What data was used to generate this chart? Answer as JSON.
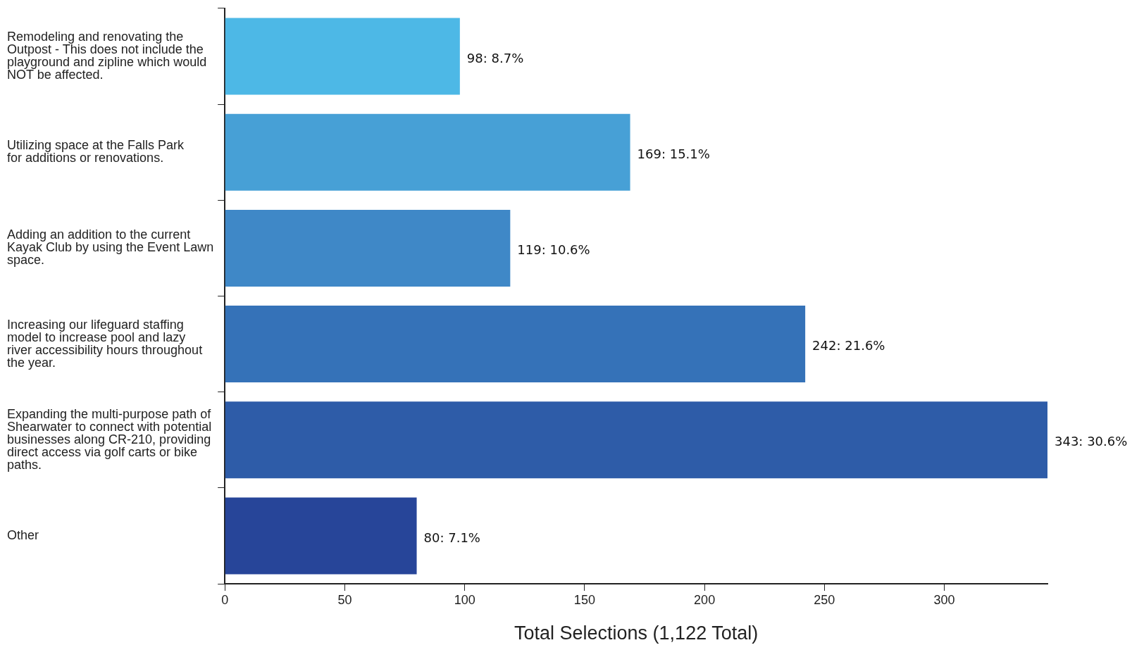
{
  "chart_data": {
    "type": "bar",
    "orientation": "horizontal",
    "xlabel": "Total Selections (1,122 Total)",
    "categories": [
      "Remodeling and renovating the\nOutpost - This does not include the\nplayground and zipline which would\nNOT be affected.",
      "Utilizing space at the Falls Park\nfor additions or renovations.",
      "Adding an addition to the current\nKayak Club by using the Event Lawn\nspace.",
      "Increasing our lifeguard staffing\nmodel to increase pool and lazy\nriver accessibility hours throughout\nthe year.",
      "Expanding the multi-purpose path of\nShearwater to connect with potential\nbusinesses along CR-210, providing\ndirect access via golf carts or bike\npaths.",
      "Other"
    ],
    "values": [
      98,
      169,
      119,
      242,
      343,
      80
    ],
    "colors": [
      "#4db8e6",
      "#47a0d6",
      "#3f88c7",
      "#3572b8",
      "#2e5ca8",
      "#274599"
    ],
    "value_labels": [
      "98: 8.7%",
      "169: 15.1%",
      "119: 10.6%",
      "242: 21.6%",
      "343: 30.6%",
      "80: 7.1%"
    ],
    "xlim": [
      0,
      343
    ],
    "xticks": [
      0,
      50,
      100,
      150,
      200,
      250,
      300
    ],
    "grid": false,
    "legend": false
  }
}
